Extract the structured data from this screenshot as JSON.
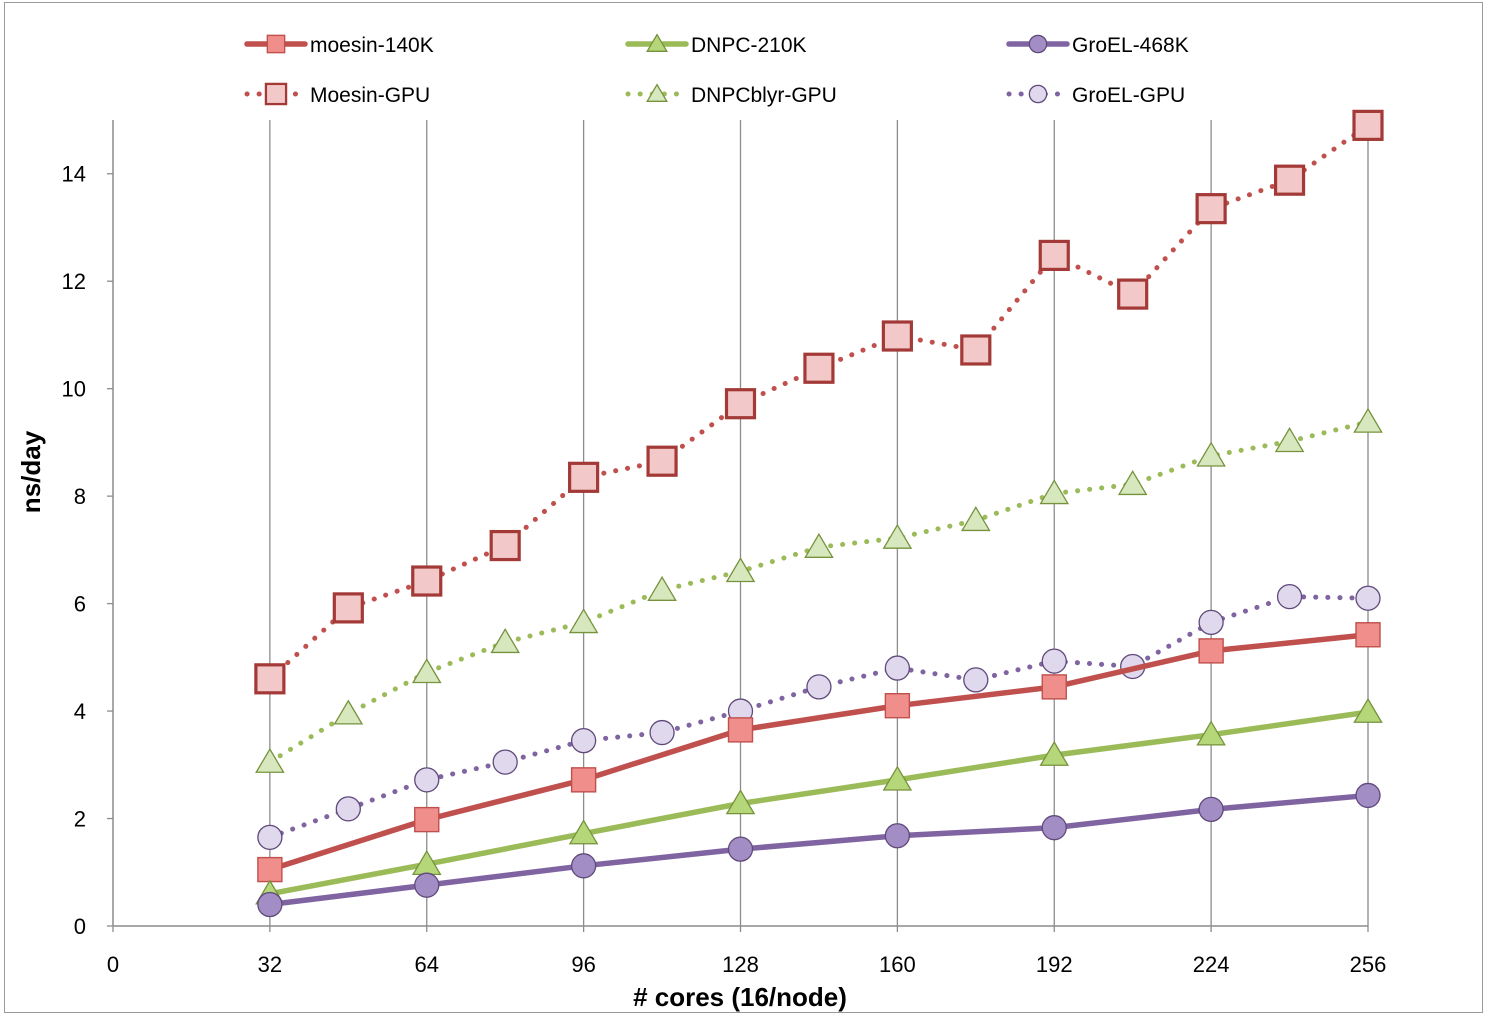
{
  "chart_data": {
    "type": "line",
    "xlabel": "# cores (16/node)",
    "ylabel": "ns/day",
    "xlim": [
      0,
      256
    ],
    "ylim": [
      0,
      15
    ],
    "x_ticks": [
      "0",
      "32",
      "64",
      "96",
      "128",
      "160",
      "192",
      "224",
      "256"
    ],
    "y_ticks": [
      "0",
      "2",
      "4",
      "6",
      "8",
      "10",
      "12",
      "14"
    ],
    "grid": "vertical",
    "legend_position": "top",
    "series": [
      {
        "name": "moesin-140K",
        "style": "solid",
        "marker": "square",
        "line_color": "#c0504d",
        "marker_fill": "#f08e8b",
        "marker_edge": "#c0504d",
        "x": [
          32,
          64,
          96,
          128,
          160,
          192,
          224,
          256
        ],
        "y": [
          1.05,
          1.98,
          2.72,
          3.65,
          4.1,
          4.45,
          5.12,
          5.42
        ]
      },
      {
        "name": "DNPC-210K",
        "style": "solid",
        "marker": "triangle",
        "line_color": "#9bbb59",
        "marker_fill": "#b5d77a",
        "marker_edge": "#76923c",
        "x": [
          32,
          64,
          96,
          128,
          160,
          192,
          224,
          256
        ],
        "y": [
          0.6,
          1.15,
          1.72,
          2.28,
          2.72,
          3.18,
          3.56,
          3.98
        ]
      },
      {
        "name": "GroEL-468K",
        "style": "solid",
        "marker": "circle",
        "line_color": "#8064a2",
        "marker_fill": "#a28dc4",
        "marker_edge": "#604a7b",
        "x": [
          32,
          64,
          96,
          128,
          160,
          192,
          224,
          256
        ],
        "y": [
          0.4,
          0.76,
          1.12,
          1.43,
          1.68,
          1.83,
          2.17,
          2.43
        ]
      },
      {
        "name": "Moesin-GPU",
        "style": "dotted",
        "marker": "square",
        "line_color": "#c0504d",
        "marker_fill": "#f2c8c8",
        "marker_edge": "#a33a37",
        "x": [
          32,
          48,
          64,
          80,
          96,
          112,
          128,
          144,
          160,
          176,
          192,
          208,
          224,
          240,
          256
        ],
        "y": [
          4.6,
          5.92,
          6.42,
          7.08,
          8.35,
          8.65,
          9.72,
          10.38,
          10.98,
          10.72,
          12.48,
          11.76,
          13.35,
          13.88,
          14.9
        ]
      },
      {
        "name": "DNPCblyr-GPU",
        "style": "dotted",
        "marker": "triangle",
        "line_color": "#9bbb59",
        "marker_fill": "#d7e8bf",
        "marker_edge": "#76923c",
        "x": [
          32,
          48,
          64,
          80,
          96,
          112,
          128,
          144,
          160,
          176,
          192,
          208,
          224,
          240,
          256
        ],
        "y": [
          3.05,
          3.95,
          4.72,
          5.28,
          5.65,
          6.25,
          6.6,
          7.05,
          7.22,
          7.55,
          8.05,
          8.22,
          8.75,
          9.02,
          9.38
        ]
      },
      {
        "name": "GroEL-GPU",
        "style": "dotted",
        "marker": "circle",
        "line_color": "#8064a2",
        "marker_fill": "#e0d8ec",
        "marker_edge": "#604a7b",
        "x": [
          32,
          48,
          64,
          80,
          96,
          112,
          128,
          144,
          160,
          176,
          192,
          208,
          224,
          240,
          256
        ],
        "y": [
          1.65,
          2.18,
          2.72,
          3.05,
          3.45,
          3.6,
          4.0,
          4.45,
          4.8,
          4.58,
          4.93,
          4.83,
          5.65,
          6.13,
          6.1
        ]
      }
    ]
  }
}
